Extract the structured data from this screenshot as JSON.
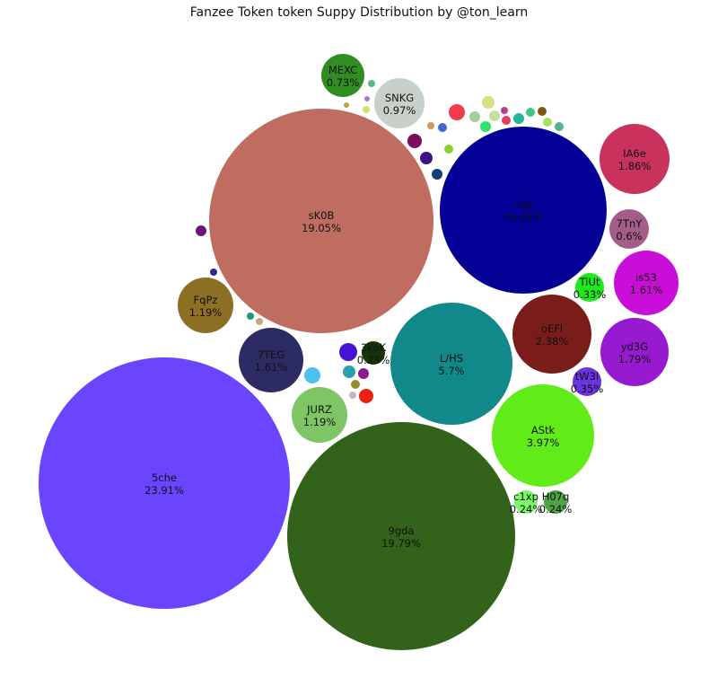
{
  "chart_data": {
    "type": "bubble",
    "title": "Fanzee Token token Suppy Distribution by @ton_learn",
    "labeled_bubbles": [
      {
        "name": "5che",
        "value": "23.91%",
        "color": "#6a45fd"
      },
      {
        "name": "9gda",
        "value": "19.79%",
        "color": "#33621a"
      },
      {
        "name": "sK0B",
        "value": "19.05%",
        "color": "#bf6d61"
      },
      {
        "name": "i-0jl",
        "value": "10.61%",
        "color": "#040096"
      },
      {
        "name": "L/HS",
        "value": "5.7%",
        "color": "#11898a"
      },
      {
        "name": "AStk",
        "value": "3.97%",
        "color": "#61ec1a"
      },
      {
        "name": "oEFl",
        "value": "2.38%",
        "color": "#7a1d1a"
      },
      {
        "name": "IA6e",
        "value": "1.86%",
        "color": "#c8325c"
      },
      {
        "name": "yd3G",
        "value": "1.79%",
        "color": "#981ad0"
      },
      {
        "name": "7TEG",
        "value": "1.61%",
        "color": "#2d2b64"
      },
      {
        "name": "is53",
        "value": "1.61%",
        "color": "#c90ed7"
      },
      {
        "name": "FqPz",
        "value": "1.19%",
        "color": "#8d7024"
      },
      {
        "name": "JURZ",
        "value": "1.19%",
        "color": "#7ec665"
      },
      {
        "name": "SNKG",
        "value": "0.97%",
        "color": "#c7d1c9"
      },
      {
        "name": "MEXC",
        "value": "0.73%",
        "color": "#2f8e1f"
      },
      {
        "name": "7TnY",
        "value": "0.6%",
        "color": "#a35d89"
      },
      {
        "name": "tW3l",
        "value": "0.35%",
        "color": "#6c33e0"
      },
      {
        "name": "TiUt",
        "value": "0.33%",
        "color": "#1ee91a"
      },
      {
        "name": "c1xp",
        "value": "0.24%",
        "color": "#7cf76a"
      },
      {
        "name": "H07q",
        "value": "0.24%",
        "color": "#4fa24a"
      },
      {
        "name": "3kaK",
        "value": "0.23%",
        "color": "#16350a"
      }
    ],
    "small_bubble_colors": [
      "#f23a4e",
      "#a3cf9c",
      "#d6e181",
      "#c9df9e",
      "#24b69a",
      "#45c18b",
      "#7a5914",
      "#a8e25c",
      "#54b28c",
      "#e3405f",
      "#b83e92",
      "#7c0a5d",
      "#3e1186",
      "#153f76",
      "#2fe269",
      "#3f66da",
      "#cc9b61",
      "#8bd22f",
      "#29a0b0",
      "#4cc0ef",
      "#4613d4",
      "#8e1a8c",
      "#e9220f",
      "#9b8d2f",
      "#c7b5c5",
      "#6d1478",
      "#2c2a90",
      "#1f9a76",
      "#d1a37f",
      "#5bb88e",
      "#9d7ec5",
      "#cfe36a",
      "#bda243"
    ]
  }
}
